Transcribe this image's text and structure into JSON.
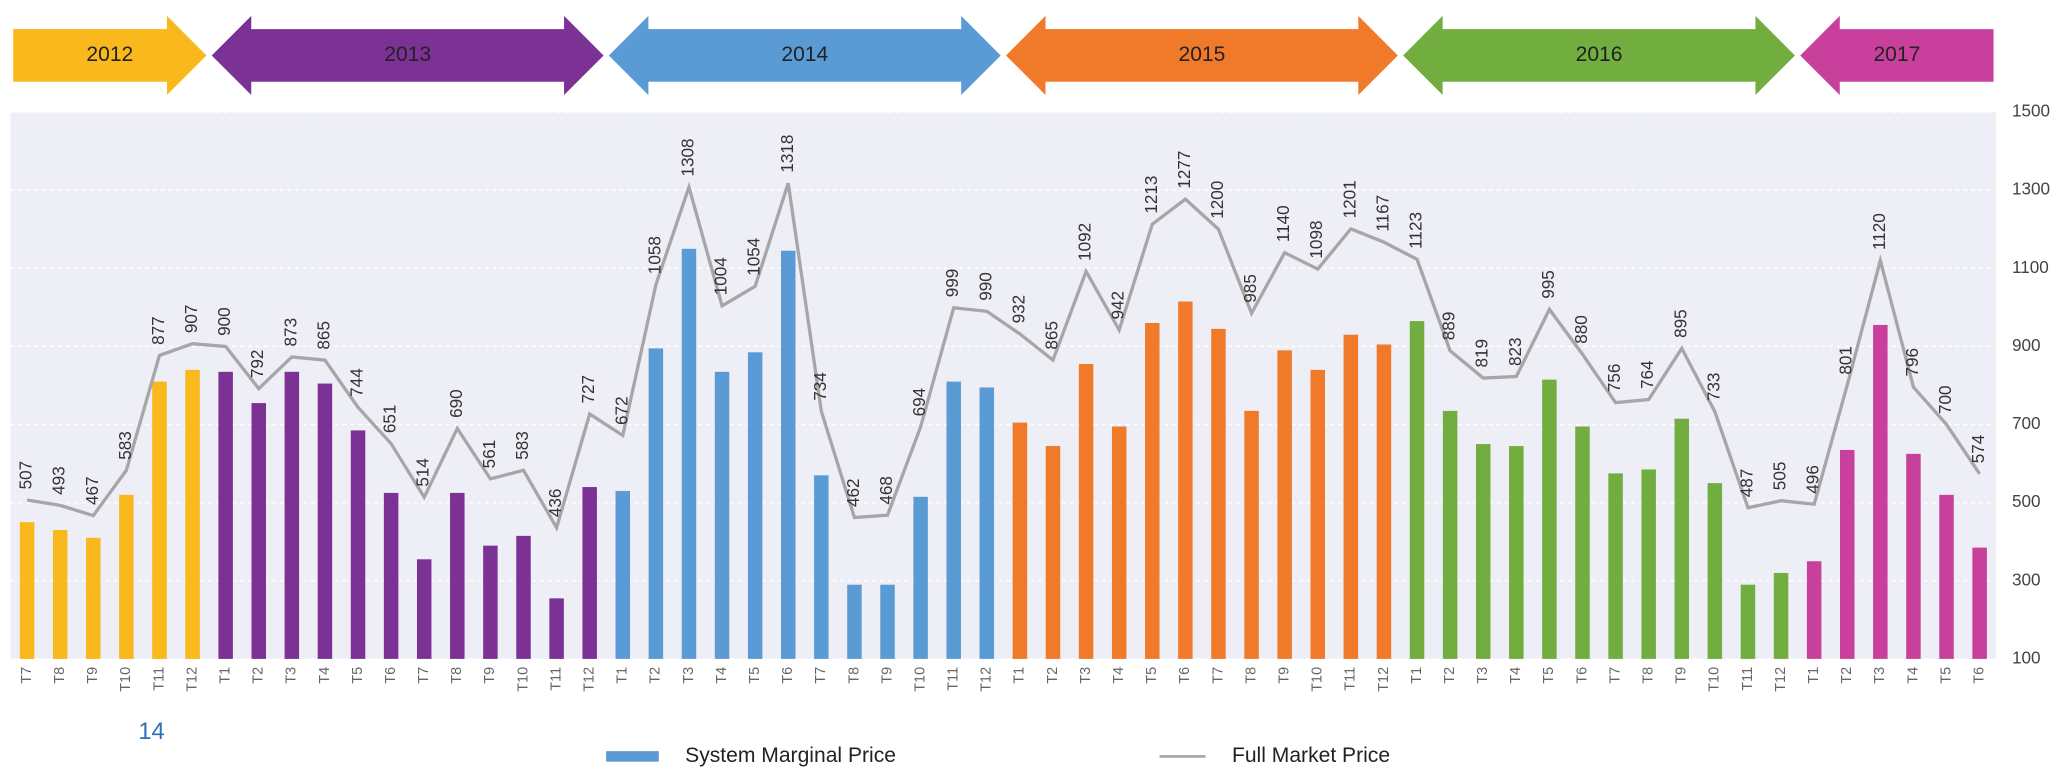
{
  "chart_data": {
    "type": "bar_line",
    "page_number": "14",
    "periods": [
      {
        "label": "2012",
        "color": "#f9b81c"
      },
      {
        "label": "2013",
        "color": "#7b3294"
      },
      {
        "label": "2014",
        "color": "#5b9bd5"
      },
      {
        "label": "2015",
        "color": "#f07a2a"
      },
      {
        "label": "2016",
        "color": "#72ad3f"
      },
      {
        "label": "2017",
        "color": "#c8409b"
      }
    ],
    "categories": [
      "T7",
      "T8",
      "T9",
      "T10",
      "T11",
      "T12",
      "T1",
      "T2",
      "T3",
      "T4",
      "T5",
      "T6",
      "T7",
      "T8",
      "T9",
      "T10",
      "T11",
      "T12",
      "T1",
      "T2",
      "T3",
      "T4",
      "T5",
      "T6",
      "T7",
      "T8",
      "T9",
      "T10",
      "T11",
      "T12",
      "T1",
      "T2",
      "T3",
      "T4",
      "T5",
      "T6",
      "T7",
      "T8",
      "T9",
      "T10",
      "T11",
      "T12",
      "T1",
      "T2",
      "T3",
      "T4",
      "T5",
      "T6",
      "T7",
      "T8",
      "T9",
      "T10",
      "T11",
      "T12",
      "T1",
      "T2",
      "T3",
      "T4",
      "T5",
      "T6"
    ],
    "series": [
      {
        "name": "System Marginal Price",
        "color": "#5b9bd5",
        "kind": "bar",
        "values": [
          450,
          430,
          410,
          520,
          810,
          840,
          835,
          755,
          835,
          805,
          685,
          525,
          355,
          525,
          390,
          415,
          255,
          540,
          530,
          895,
          1150,
          835,
          885,
          1145,
          570,
          290,
          290,
          515,
          810,
          795,
          705,
          645,
          855,
          695,
          960,
          1015,
          945,
          735,
          890,
          840,
          930,
          905,
          965,
          735,
          650,
          645,
          815,
          695,
          575,
          585,
          715,
          550,
          290,
          320,
          350,
          635,
          955,
          625,
          520,
          385
        ]
      },
      {
        "name": "Full Market Price",
        "color": "#a6a6a6",
        "kind": "line",
        "values": [
          507,
          493,
          467,
          583,
          877,
          907,
          900,
          792,
          873,
          865,
          744,
          651,
          514,
          690,
          561,
          583,
          436,
          727,
          672,
          1058,
          1308,
          1004,
          1054,
          1318,
          734,
          462,
          468,
          694,
          999,
          990,
          932,
          865,
          1092,
          942,
          1213,
          1277,
          1200,
          985,
          1140,
          1098,
          1201,
          1167,
          1123,
          889,
          819,
          823,
          995,
          880,
          756,
          764,
          895,
          733,
          487,
          505,
          496,
          801,
          1120,
          796,
          700,
          574
        ]
      }
    ],
    "ylim": [
      100,
      1500
    ],
    "yticks": [
      100,
      300,
      500,
      700,
      900,
      1100,
      1300,
      1500
    ],
    "grid": true,
    "plot_background": "#eeeef7",
    "legend": "bottom"
  }
}
